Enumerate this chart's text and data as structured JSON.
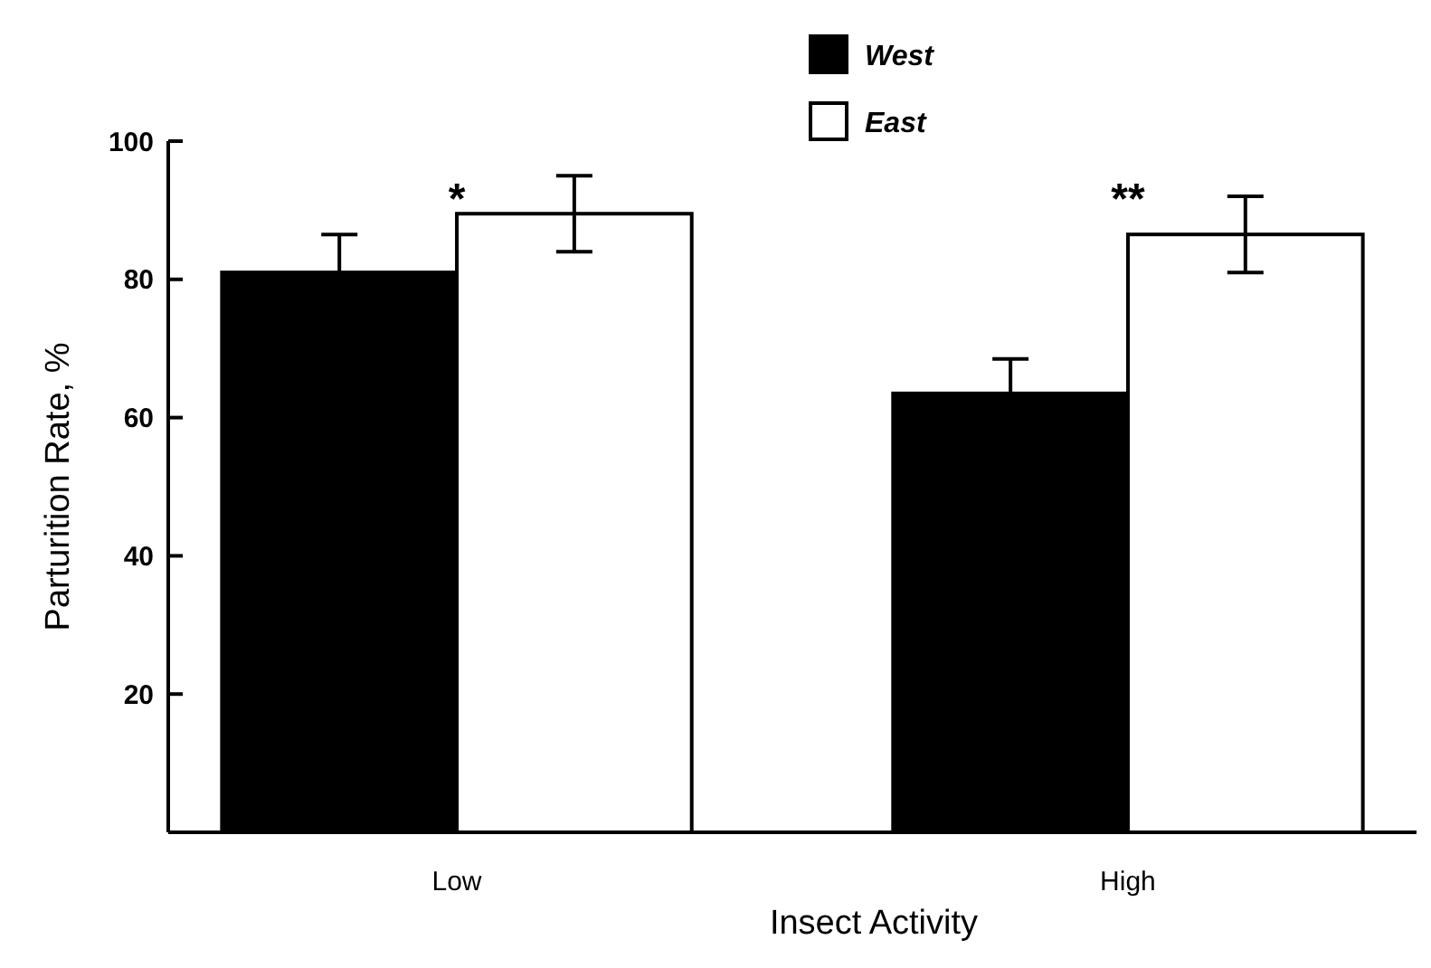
{
  "chart_data": {
    "type": "bar",
    "xlabel": "Insect Activity",
    "ylabel": "Parturition Rate, %",
    "categories": [
      "Low",
      "High"
    ],
    "series": [
      {
        "name": "West",
        "color": "#000000",
        "values": [
          81,
          63.5
        ],
        "errors": [
          5.5,
          5
        ]
      },
      {
        "name": "East",
        "color": "#ffffff",
        "values": [
          89.5,
          86.5
        ],
        "errors": [
          5.5,
          5.5
        ]
      }
    ],
    "ylim": [
      0,
      100
    ],
    "yticks": [
      {
        "value": 0,
        "label": null
      },
      20,
      40,
      60,
      80,
      100
    ],
    "legend": "top",
    "annotations": [
      "*",
      "**"
    ]
  }
}
